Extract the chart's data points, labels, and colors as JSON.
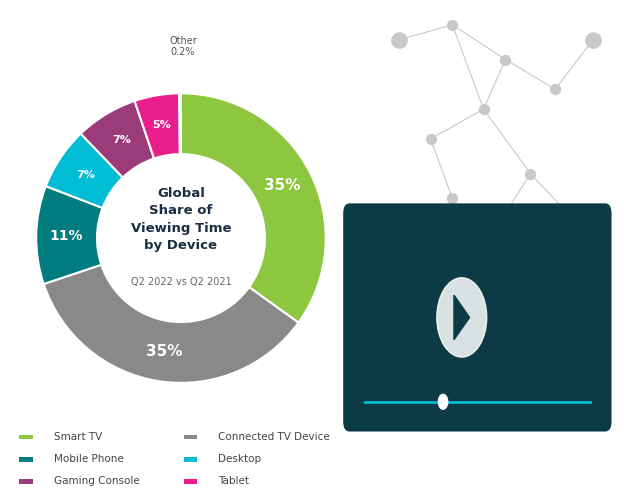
{
  "title_line1": "Global",
  "title_line2": "Share of",
  "title_line3": "Viewing Time",
  "title_line4": "by Device",
  "subtitle": "Q2 2022 vs Q2 2021",
  "slices": [
    {
      "label": "Smart TV",
      "value": 35.0,
      "color": "#8DC63F",
      "text_color": "#ffffff",
      "pct_label": "35%"
    },
    {
      "label": "Connected TV Device",
      "value": 35.0,
      "color": "#898989",
      "text_color": "#ffffff",
      "pct_label": "35%"
    },
    {
      "label": "Mobile Phone",
      "value": 11.0,
      "color": "#007B80",
      "text_color": "#ffffff",
      "pct_label": "11%"
    },
    {
      "label": "Desktop",
      "value": 7.0,
      "color": "#00BCD4",
      "text_color": "#ffffff",
      "pct_label": "7%"
    },
    {
      "label": "Gaming Console",
      "value": 7.0,
      "color": "#9C3B7A",
      "text_color": "#ffffff",
      "pct_label": "7%"
    },
    {
      "label": "Tablet",
      "value": 5.0,
      "color": "#E91E8C",
      "text_color": "#ffffff",
      "pct_label": "5%"
    },
    {
      "label": "Other",
      "value": 0.2,
      "color": "#D8D8D8",
      "text_color": "#555555",
      "pct_label": "0.2%"
    }
  ],
  "legend_items_col1": [
    {
      "label": "Smart TV",
      "color": "#8DC63F"
    },
    {
      "label": "Mobile Phone",
      "color": "#007B80"
    },
    {
      "label": "Gaming Console",
      "color": "#9C3B7A"
    }
  ],
  "legend_items_col2": [
    {
      "label": "Connected TV Device",
      "color": "#898989"
    },
    {
      "label": "Desktop",
      "color": "#00BCD4"
    },
    {
      "label": "Tablet",
      "color": "#E91E8C"
    }
  ],
  "background_color": "#ffffff",
  "donut_width": 0.42,
  "center_title_color": "#1a2e44",
  "subtitle_color": "#666666",
  "legend_text_color": "#444444"
}
